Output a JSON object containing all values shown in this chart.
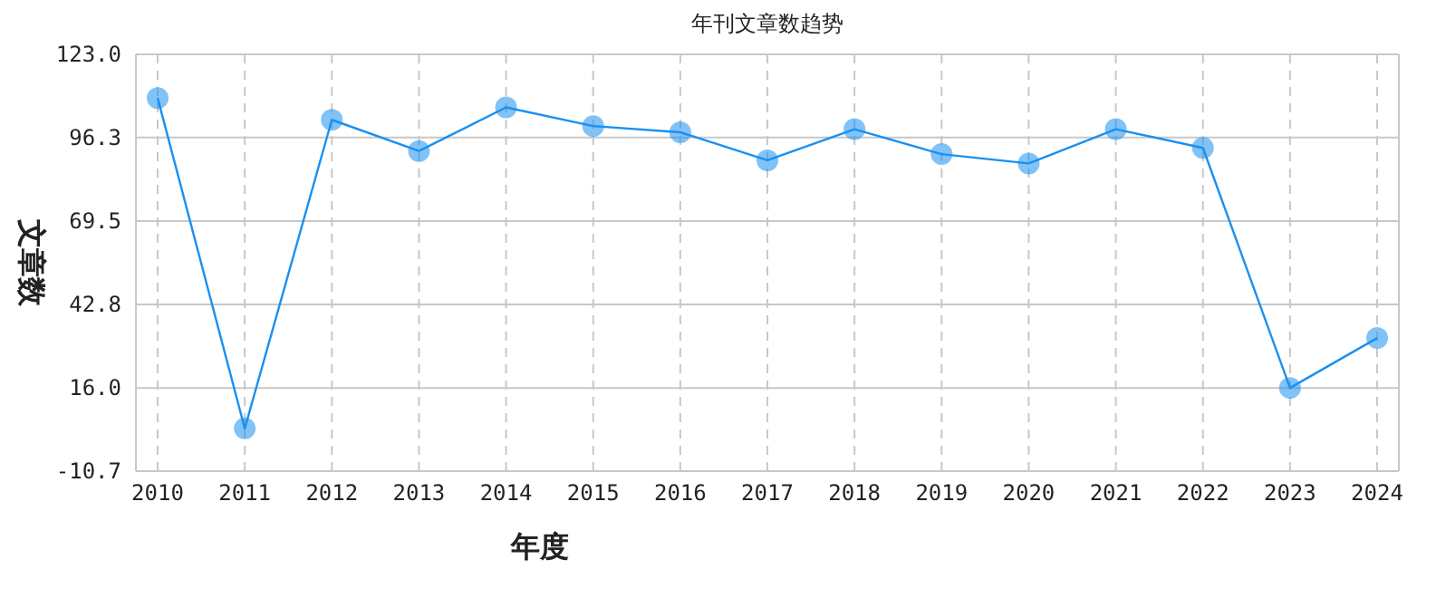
{
  "chart_data": {
    "type": "line",
    "title": "年刊文章数趋势",
    "xlabel": "年度",
    "ylabel": "文章数",
    "categories": [
      "2010",
      "2011",
      "2012",
      "2013",
      "2014",
      "2015",
      "2016",
      "2017",
      "2018",
      "2019",
      "2020",
      "2021",
      "2022",
      "2023",
      "2024"
    ],
    "series": [
      {
        "color": "#1a90f0",
        "values": [
          109,
          3,
          102,
          92,
          106,
          100,
          98,
          89,
          99,
          91,
          88,
          99,
          93,
          16,
          32
        ]
      }
    ],
    "ylim": [
      -10.7,
      123.0
    ],
    "yticks": [
      {
        "value": -10.7,
        "label": "-10.7"
      },
      {
        "value": 16.0,
        "label": "16.0"
      },
      {
        "value": 42.8,
        "label": "42.8"
      },
      {
        "value": 69.5,
        "label": "69.5"
      },
      {
        "value": 96.3,
        "label": "96.3"
      },
      {
        "value": 123.0,
        "label": "123.0"
      }
    ],
    "grid": true,
    "marker": "circle",
    "line_style": "solid"
  }
}
